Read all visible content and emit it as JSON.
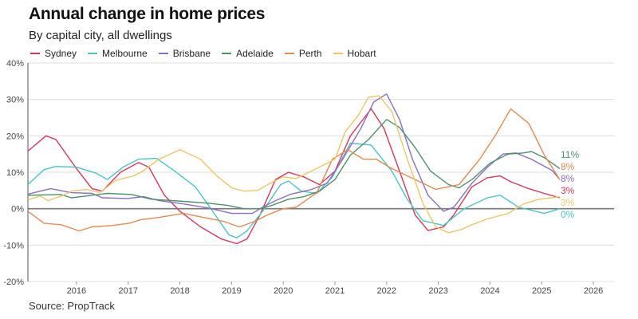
{
  "chart_data": {
    "type": "line",
    "title": "Annual change in home prices",
    "subtitle": "By capital city, all dwellings",
    "source": "Source: PropTrack",
    "xlabel": "",
    "ylabel": "",
    "xlim": [
      2015.06,
      2026.4
    ],
    "ylim": [
      -20,
      40
    ],
    "x_ticks": [
      "2016",
      "2017",
      "2018",
      "2019",
      "2020",
      "2021",
      "2022",
      "2023",
      "2024",
      "2025",
      "2026"
    ],
    "y_ticks": [
      "40%",
      "30%",
      "20%",
      "10%",
      "0%",
      "-10%",
      "-20%"
    ],
    "grid": true,
    "legend": "top-left",
    "series": [
      {
        "name": "Sydney",
        "color": "#d0385a",
        "end_label": "3%",
        "points": [
          [
            2015.06,
            15.8
          ],
          [
            2015.41,
            20
          ],
          [
            2015.6,
            19
          ],
          [
            2016,
            11
          ],
          [
            2016.3,
            5.5
          ],
          [
            2016.5,
            4.8
          ],
          [
            2016.85,
            10
          ],
          [
            2017.2,
            12.7
          ],
          [
            2017.4,
            11.4
          ],
          [
            2017.7,
            3.7
          ],
          [
            2018,
            -0.7
          ],
          [
            2018.4,
            -5
          ],
          [
            2018.8,
            -8.3
          ],
          [
            2019.1,
            -9.6
          ],
          [
            2019.3,
            -8.3
          ],
          [
            2019.55,
            -1.7
          ],
          [
            2019.85,
            8
          ],
          [
            2020.1,
            10
          ],
          [
            2020.4,
            8.7
          ],
          [
            2020.7,
            6.6
          ],
          [
            2021,
            10.3
          ],
          [
            2021.3,
            20
          ],
          [
            2021.7,
            27.4
          ],
          [
            2021.95,
            22
          ],
          [
            2022.25,
            10.3
          ],
          [
            2022.55,
            -1.7
          ],
          [
            2022.8,
            -6
          ],
          [
            2023.1,
            -5
          ],
          [
            2023.3,
            -1.7
          ],
          [
            2023.65,
            6
          ],
          [
            2023.95,
            8.5
          ],
          [
            2024.2,
            9
          ],
          [
            2024.4,
            7.4
          ],
          [
            2024.75,
            5.5
          ],
          [
            2025.05,
            4.2
          ],
          [
            2025.35,
            3
          ]
        ]
      },
      {
        "name": "Melbourne",
        "color": "#4cc3c8",
        "end_label": "0%",
        "points": [
          [
            2015.06,
            6.6
          ],
          [
            2015.37,
            10.7
          ],
          [
            2015.6,
            11.6
          ],
          [
            2016,
            11.4
          ],
          [
            2016.37,
            9.8
          ],
          [
            2016.6,
            8
          ],
          [
            2016.9,
            11.4
          ],
          [
            2017.2,
            13.6
          ],
          [
            2017.55,
            13.8
          ],
          [
            2017.9,
            10.3
          ],
          [
            2018.3,
            6
          ],
          [
            2018.6,
            0
          ],
          [
            2018.95,
            -7.2
          ],
          [
            2019.1,
            -8
          ],
          [
            2019.3,
            -6.1
          ],
          [
            2019.6,
            -0.7
          ],
          [
            2019.95,
            6.6
          ],
          [
            2020.1,
            7.6
          ],
          [
            2020.35,
            4.8
          ],
          [
            2020.65,
            4.2
          ],
          [
            2020.95,
            8.7
          ],
          [
            2021.3,
            18
          ],
          [
            2021.7,
            17.5
          ],
          [
            2022.1,
            10.3
          ],
          [
            2022.4,
            2.6
          ],
          [
            2022.7,
            -3.3
          ],
          [
            2023.1,
            -4.6
          ],
          [
            2023.5,
            0
          ],
          [
            2023.95,
            3
          ],
          [
            2024.2,
            3.7
          ],
          [
            2024.55,
            0.4
          ],
          [
            2025.05,
            -1.3
          ],
          [
            2025.35,
            0
          ]
        ]
      },
      {
        "name": "Brisbane",
        "color": "#8a6fc0",
        "end_label": "8%",
        "points": [
          [
            2015.06,
            4
          ],
          [
            2015.5,
            5.5
          ],
          [
            2015.9,
            4.4
          ],
          [
            2016.3,
            4.2
          ],
          [
            2016.5,
            3
          ],
          [
            2016.98,
            2.8
          ],
          [
            2017.3,
            3.3
          ],
          [
            2017.6,
            2.2
          ],
          [
            2018.07,
            1.3
          ],
          [
            2018.55,
            0.2
          ],
          [
            2019,
            -1.3
          ],
          [
            2019.4,
            -1.3
          ],
          [
            2019.6,
            0.4
          ],
          [
            2019.85,
            2.2
          ],
          [
            2020.15,
            4
          ],
          [
            2020.55,
            5.3
          ],
          [
            2020.85,
            7
          ],
          [
            2021.15,
            13.6
          ],
          [
            2021.5,
            22
          ],
          [
            2021.75,
            29.3
          ],
          [
            2022,
            31.5
          ],
          [
            2022.25,
            24.5
          ],
          [
            2022.5,
            13.6
          ],
          [
            2022.8,
            3.7
          ],
          [
            2023.1,
            -0.7
          ],
          [
            2023.3,
            0.4
          ],
          [
            2023.65,
            7
          ],
          [
            2023.95,
            11.4
          ],
          [
            2024.25,
            15
          ],
          [
            2024.5,
            15.3
          ],
          [
            2024.8,
            13.6
          ],
          [
            2025.2,
            10.5
          ],
          [
            2025.35,
            8
          ]
        ]
      },
      {
        "name": "Adelaide",
        "color": "#4e8f6e",
        "end_label": "11%",
        "points": [
          [
            2015.06,
            3.7
          ],
          [
            2015.7,
            3.9
          ],
          [
            2015.9,
            3
          ],
          [
            2016.2,
            3.5
          ],
          [
            2016.6,
            4.2
          ],
          [
            2017.07,
            3.9
          ],
          [
            2017.45,
            2.6
          ],
          [
            2018.07,
            2
          ],
          [
            2018.55,
            1.5
          ],
          [
            2018.93,
            0.9
          ],
          [
            2019.24,
            0
          ],
          [
            2019.55,
            0
          ],
          [
            2019.78,
            0.9
          ],
          [
            2020.1,
            2.6
          ],
          [
            2020.4,
            3.3
          ],
          [
            2020.7,
            4.8
          ],
          [
            2021,
            8
          ],
          [
            2021.3,
            14.7
          ],
          [
            2021.65,
            19
          ],
          [
            2022,
            24.5
          ],
          [
            2022.25,
            22.3
          ],
          [
            2022.55,
            16.8
          ],
          [
            2022.85,
            10.3
          ],
          [
            2023.2,
            6.6
          ],
          [
            2023.4,
            5.7
          ],
          [
            2023.65,
            8
          ],
          [
            2024,
            12.5
          ],
          [
            2024.35,
            15
          ],
          [
            2024.65,
            15.3
          ],
          [
            2024.8,
            15.7
          ],
          [
            2025.05,
            14
          ],
          [
            2025.35,
            11
          ]
        ]
      },
      {
        "name": "Perth",
        "color": "#e08a55",
        "end_label": "8%",
        "points": [
          [
            2015.06,
            -0.7
          ],
          [
            2015.37,
            -4
          ],
          [
            2015.7,
            -4.4
          ],
          [
            2016.05,
            -6.1
          ],
          [
            2016.3,
            -5
          ],
          [
            2016.7,
            -4.6
          ],
          [
            2017.02,
            -4
          ],
          [
            2017.25,
            -3
          ],
          [
            2017.6,
            -2.4
          ],
          [
            2018.07,
            -1.3
          ],
          [
            2018.45,
            -2.4
          ],
          [
            2018.85,
            -3.5
          ],
          [
            2019.15,
            -5
          ],
          [
            2019.45,
            -3.5
          ],
          [
            2019.7,
            -1.7
          ],
          [
            2020,
            0
          ],
          [
            2020.25,
            0.4
          ],
          [
            2020.65,
            4.4
          ],
          [
            2020.95,
            13.6
          ],
          [
            2021.25,
            16.2
          ],
          [
            2021.55,
            13.6
          ],
          [
            2021.8,
            13.6
          ],
          [
            2022.1,
            11
          ],
          [
            2022.55,
            8
          ],
          [
            2022.95,
            5.3
          ],
          [
            2023.15,
            5.9
          ],
          [
            2023.4,
            6.6
          ],
          [
            2023.8,
            13.6
          ],
          [
            2024.1,
            20
          ],
          [
            2024.4,
            27.4
          ],
          [
            2024.75,
            23.4
          ],
          [
            2025.05,
            14.7
          ],
          [
            2025.35,
            8
          ]
        ]
      },
      {
        "name": "Hobart",
        "color": "#ecc66a",
        "end_label": "3%",
        "points": [
          [
            2015.06,
            2.4
          ],
          [
            2015.3,
            3.5
          ],
          [
            2015.45,
            2.2
          ],
          [
            2015.75,
            3.7
          ],
          [
            2015.9,
            4.8
          ],
          [
            2016.2,
            5.3
          ],
          [
            2016.45,
            4.4
          ],
          [
            2016.75,
            7.7
          ],
          [
            2017.1,
            9
          ],
          [
            2017.25,
            10
          ],
          [
            2017.6,
            13.6
          ],
          [
            2018,
            16.2
          ],
          [
            2018.4,
            13.6
          ],
          [
            2018.7,
            9.2
          ],
          [
            2019,
            5.7
          ],
          [
            2019.25,
            4.8
          ],
          [
            2019.5,
            5
          ],
          [
            2019.8,
            7.4
          ],
          [
            2020,
            8.7
          ],
          [
            2020.25,
            8.3
          ],
          [
            2020.6,
            10.7
          ],
          [
            2021,
            13.6
          ],
          [
            2021.2,
            21.2
          ],
          [
            2021.45,
            25.6
          ],
          [
            2021.65,
            30.6
          ],
          [
            2021.85,
            31
          ],
          [
            2022.1,
            26.7
          ],
          [
            2022.4,
            13.6
          ],
          [
            2022.7,
            1.5
          ],
          [
            2022.95,
            -5
          ],
          [
            2023.2,
            -6.6
          ],
          [
            2023.45,
            -5.7
          ],
          [
            2023.65,
            -4.4
          ],
          [
            2023.95,
            -2.8
          ],
          [
            2024.35,
            -1.3
          ],
          [
            2024.65,
            1.3
          ],
          [
            2024.95,
            2.6
          ],
          [
            2025.2,
            3
          ],
          [
            2025.35,
            3.3
          ]
        ]
      }
    ],
    "end_label_order": [
      "Adelaide",
      "Perth",
      "Brisbane",
      "Sydney",
      "Hobart",
      "Melbourne"
    ]
  }
}
